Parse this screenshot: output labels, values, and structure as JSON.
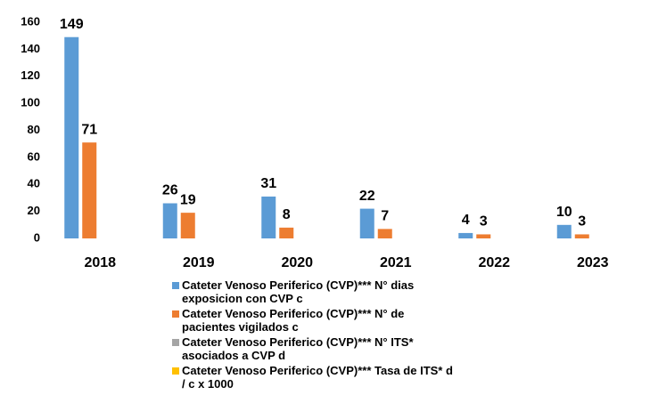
{
  "chart_data": {
    "type": "bar",
    "categories": [
      "2018",
      "2019",
      "2020",
      "2021",
      "2022",
      "2023"
    ],
    "series": [
      {
        "name": "Cateter Venoso Periferico (CVP)*** N° dias exposicion con CVP c",
        "color": "#5b9bd5",
        "values": [
          149,
          26,
          31,
          22,
          4,
          10
        ],
        "labels": true
      },
      {
        "name": "Cateter Venoso Periferico (CVP)*** N° de pacientes vigilados c",
        "color": "#ed7d31",
        "values": [
          71,
          19,
          8,
          7,
          3,
          3
        ],
        "labels": true
      },
      {
        "name": "Cateter Venoso Periferico (CVP)*** N° ITS* asociados a CVP d",
        "color": "#a5a5a5",
        "values": [
          0,
          0,
          0,
          0,
          0,
          0
        ],
        "labels": false
      },
      {
        "name": "Cateter Venoso Periferico (CVP)*** Tasa de ITS*  d / c x 1000",
        "color": "#ffc000",
        "values": [
          0,
          0,
          0,
          0,
          0,
          0
        ],
        "labels": false
      }
    ],
    "ylim": [
      0,
      160
    ],
    "yticks": [
      0,
      20,
      40,
      60,
      80,
      100,
      120,
      140,
      160
    ],
    "grid": false,
    "legend": "bottom"
  }
}
